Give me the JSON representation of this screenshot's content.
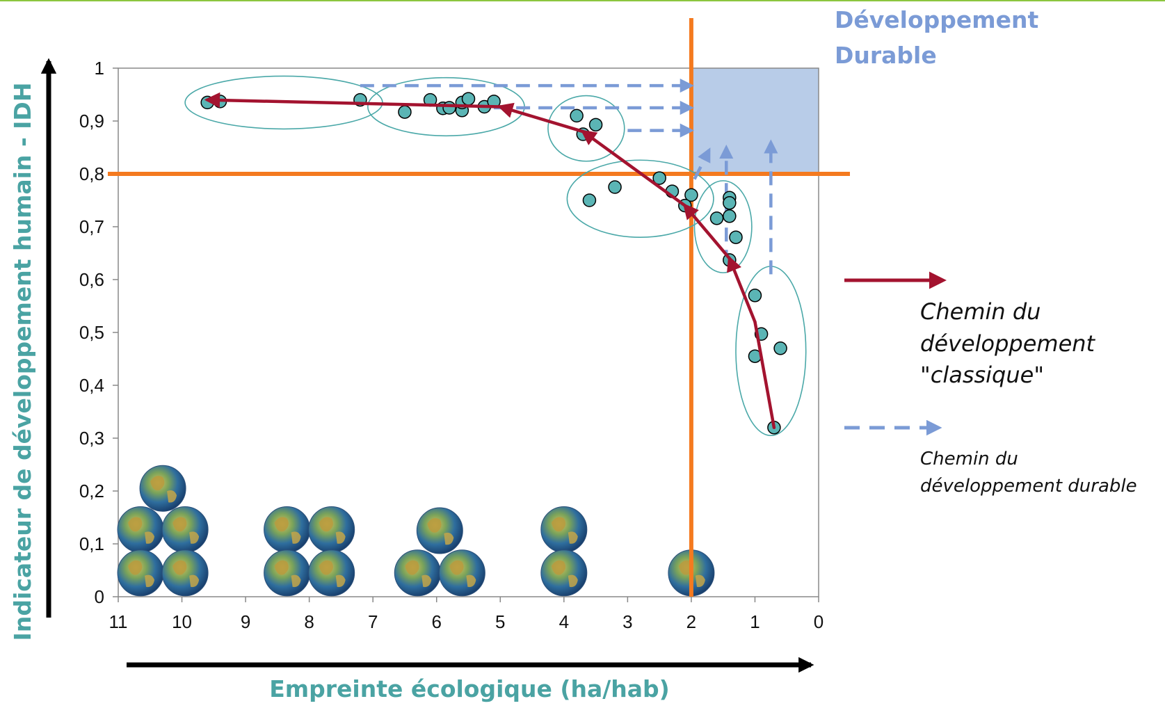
{
  "chart_data": {
    "type": "scatter",
    "title": "",
    "xlabel": "Empreinte écologique (ha/hab)",
    "ylabel": "Indicateur de développement humain - IDH",
    "xlim": [
      11,
      0
    ],
    "ylim": [
      0,
      1
    ],
    "x_ticks": [
      "11",
      "10",
      "9",
      "8",
      "7",
      "6",
      "5",
      "4",
      "3",
      "2",
      "1",
      "0"
    ],
    "y_ticks": [
      "0",
      "0,1",
      "0,2",
      "0,3",
      "0,4",
      "0,5",
      "0,6",
      "0,7",
      "0,8",
      "0,9",
      "1"
    ],
    "highlight_x_tick": "2",
    "highlight_y_tick": "0,8",
    "threshold_x": 2,
    "threshold_y": 0.8,
    "sustainable_zone": {
      "x": [
        0,
        2
      ],
      "y": [
        0.8,
        1
      ],
      "label_line1": "Développement",
      "label_line2": "Durable",
      "color": "#b8cce8"
    },
    "points": [
      {
        "x": 9.6,
        "y": 0.935
      },
      {
        "x": 9.4,
        "y": 0.937
      },
      {
        "x": 7.2,
        "y": 0.94
      },
      {
        "x": 6.1,
        "y": 0.94
      },
      {
        "x": 6.5,
        "y": 0.917
      },
      {
        "x": 5.9,
        "y": 0.924
      },
      {
        "x": 5.8,
        "y": 0.925
      },
      {
        "x": 5.6,
        "y": 0.92
      },
      {
        "x": 5.6,
        "y": 0.935
      },
      {
        "x": 5.5,
        "y": 0.942
      },
      {
        "x": 5.25,
        "y": 0.927
      },
      {
        "x": 5.1,
        "y": 0.937
      },
      {
        "x": 3.8,
        "y": 0.91
      },
      {
        "x": 3.5,
        "y": 0.893
      },
      {
        "x": 3.7,
        "y": 0.875
      },
      {
        "x": 3.6,
        "y": 0.75
      },
      {
        "x": 3.2,
        "y": 0.775
      },
      {
        "x": 2.5,
        "y": 0.792
      },
      {
        "x": 2.3,
        "y": 0.767
      },
      {
        "x": 2.0,
        "y": 0.76
      },
      {
        "x": 2.1,
        "y": 0.74
      },
      {
        "x": 1.4,
        "y": 0.755
      },
      {
        "x": 1.4,
        "y": 0.745
      },
      {
        "x": 1.6,
        "y": 0.716
      },
      {
        "x": 1.4,
        "y": 0.72
      },
      {
        "x": 1.3,
        "y": 0.68
      },
      {
        "x": 1.4,
        "y": 0.637
      },
      {
        "x": 1.0,
        "y": 0.57
      },
      {
        "x": 0.9,
        "y": 0.497
      },
      {
        "x": 1.0,
        "y": 0.455
      },
      {
        "x": 0.6,
        "y": 0.47
      },
      {
        "x": 0.7,
        "y": 0.32
      }
    ],
    "point_color": "#5bb5b5",
    "classic_path": [
      {
        "x": 0.7,
        "y": 0.32
      },
      {
        "x": 1.0,
        "y": 0.52
      },
      {
        "x": 1.4,
        "y": 0.64
      },
      {
        "x": 2.1,
        "y": 0.74
      },
      {
        "x": 3.7,
        "y": 0.88
      },
      {
        "x": 5.0,
        "y": 0.927
      },
      {
        "x": 9.6,
        "y": 0.94
      }
    ],
    "sustainable_paths": [
      {
        "from": {
          "x": 7.2,
          "y": 0.967
        },
        "to": {
          "x": 2.0,
          "y": 0.967
        }
      },
      {
        "from": {
          "x": 5.1,
          "y": 0.925
        },
        "to": {
          "x": 2.0,
          "y": 0.925
        }
      },
      {
        "from": {
          "x": 3.0,
          "y": 0.882
        },
        "to": {
          "x": 2.0,
          "y": 0.882
        }
      },
      {
        "from": {
          "x": 1.95,
          "y": 0.79
        },
        "to": {
          "x": 1.72,
          "y": 0.845
        }
      },
      {
        "from": {
          "x": 1.45,
          "y": 0.63
        },
        "to": {
          "x": 1.45,
          "y": 0.85
        }
      },
      {
        "from": {
          "x": 0.75,
          "y": 0.61
        },
        "to": {
          "x": 0.75,
          "y": 0.86
        }
      }
    ],
    "clusters": [
      {
        "cx": 8.4,
        "cy": 0.935,
        "rx": 1.55,
        "ry": 0.05
      },
      {
        "cx": 5.85,
        "cy": 0.927,
        "rx": 1.23,
        "ry": 0.055
      },
      {
        "cx": 3.65,
        "cy": 0.886,
        "rx": 0.6,
        "ry": 0.062
      },
      {
        "cx": 2.8,
        "cy": 0.753,
        "rx": 1.15,
        "ry": 0.073
      },
      {
        "cx": 1.5,
        "cy": 0.7,
        "rx": 0.45,
        "ry": 0.087
      },
      {
        "cx": 0.75,
        "cy": 0.465,
        "rx": 0.55,
        "ry": 0.16
      }
    ],
    "earths": [
      {
        "x": 10.3,
        "y": 0.205
      },
      {
        "x": 10.65,
        "y": 0.127
      },
      {
        "x": 9.95,
        "y": 0.127
      },
      {
        "x": 10.65,
        "y": 0.045
      },
      {
        "x": 9.95,
        "y": 0.045
      },
      {
        "x": 8.35,
        "y": 0.127
      },
      {
        "x": 7.65,
        "y": 0.127
      },
      {
        "x": 8.35,
        "y": 0.045
      },
      {
        "x": 7.65,
        "y": 0.045
      },
      {
        "x": 5.95,
        "y": 0.125
      },
      {
        "x": 6.3,
        "y": 0.045
      },
      {
        "x": 5.6,
        "y": 0.045
      },
      {
        "x": 4.0,
        "y": 0.127
      },
      {
        "x": 4.0,
        "y": 0.045
      },
      {
        "x": 2.0,
        "y": 0.045
      }
    ],
    "legend": {
      "classic": [
        "Chemin du",
        "développement",
        "\"classique\""
      ],
      "sustainable": [
        "Chemin du",
        "développement durable"
      ]
    }
  }
}
